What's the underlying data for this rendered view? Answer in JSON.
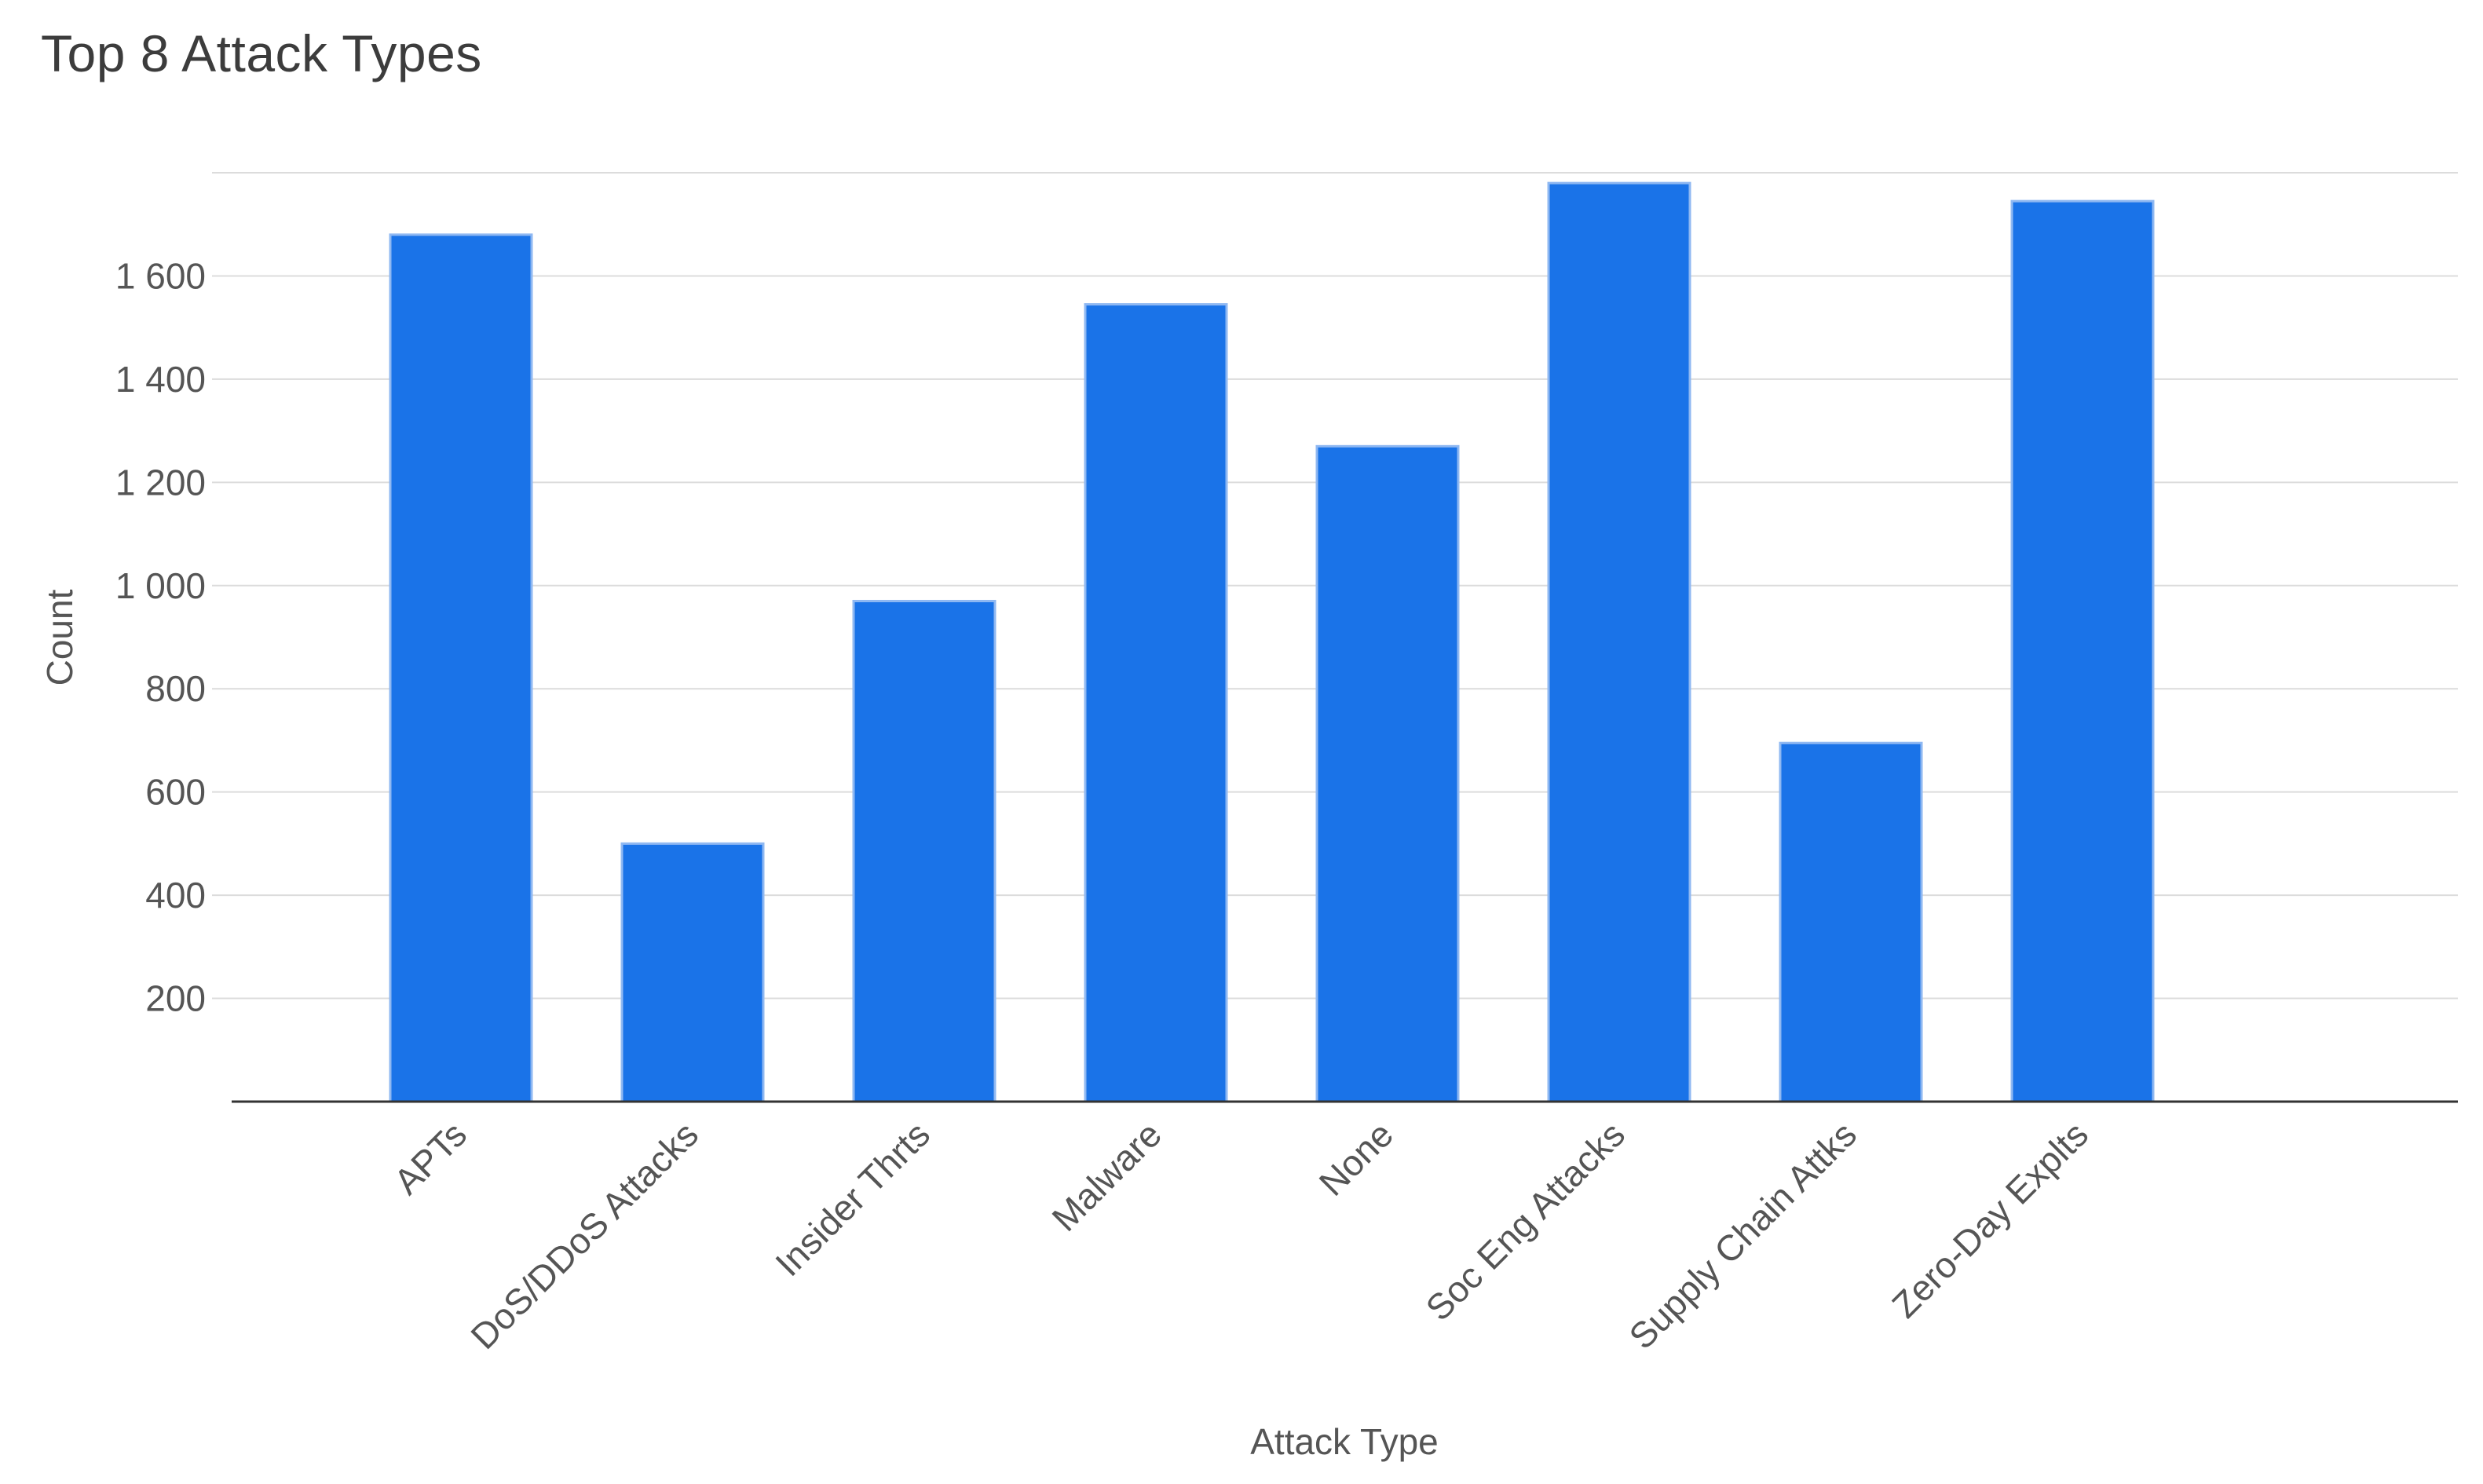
{
  "chart_data": {
    "type": "bar",
    "title": "Top 8 Attack Types",
    "xlabel": "Attack Type",
    "ylabel": "Count",
    "categories": [
      "APTs",
      "DoS/DDoS Attacks",
      "Insider Thrts",
      "Malware",
      "None",
      "Soc Eng Attacks",
      "Supply Chain Attks",
      "Zero-Day Explts"
    ],
    "values": [
      1680,
      500,
      970,
      1545,
      1270,
      1780,
      695,
      1745
    ],
    "ylim": [
      0,
      1800
    ],
    "yticks": [
      200,
      400,
      600,
      800,
      1000,
      1200,
      1400,
      1600
    ],
    "ytick_labels": [
      "200",
      "400",
      "600",
      "800",
      "1 000",
      "1 200",
      "1 400",
      "1 600"
    ],
    "grid": true,
    "legend": "none",
    "bar_color": "#1a73e8"
  }
}
